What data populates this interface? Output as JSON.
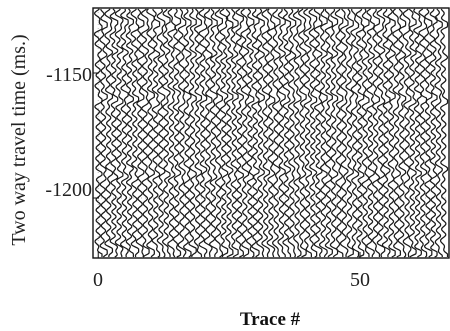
{
  "chart_data": {
    "type": "line",
    "title": "",
    "xlabel": "Trace #",
    "ylabel": "Two way travel time (ms.)",
    "xlim": [
      -1,
      67
    ],
    "ylim": [
      -1226,
      -1126
    ],
    "y_inverted_direction": "more negative downward",
    "xticks": [
      0,
      50
    ],
    "yticks": [
      -1150,
      -1200
    ],
    "trace_count": 67,
    "grid": true,
    "wiggle_amplitude_traces": 0.55,
    "events": [
      {
        "time": -1128,
        "strength": 1.0
      },
      {
        "time": -1160,
        "strength": 0.6
      },
      {
        "time": -1190,
        "strength": 0.8
      },
      {
        "time": -1208,
        "strength": 0.5
      },
      {
        "time": -1220,
        "strength": 1.0
      }
    ],
    "colors": {
      "trace": "#1a1a1a",
      "grid": "#bbbbbb",
      "frame": "#111111"
    }
  }
}
